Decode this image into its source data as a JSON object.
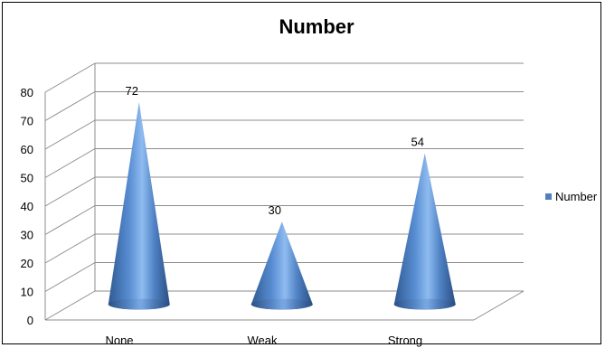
{
  "chart_data": {
    "type": "bar",
    "style": "3d-cone",
    "title": "Number",
    "categories": [
      "None",
      "Weak",
      "Strong"
    ],
    "series": [
      {
        "name": "Number",
        "values": [
          72,
          30,
          54
        ],
        "color": "#4F81BD"
      }
    ],
    "data_labels": [
      "72",
      "30",
      "54"
    ],
    "yticks": [
      "0",
      "10",
      "20",
      "30",
      "40",
      "50",
      "60",
      "70",
      "80"
    ],
    "ylim": [
      0,
      80
    ],
    "grid": true,
    "legend": "right"
  }
}
